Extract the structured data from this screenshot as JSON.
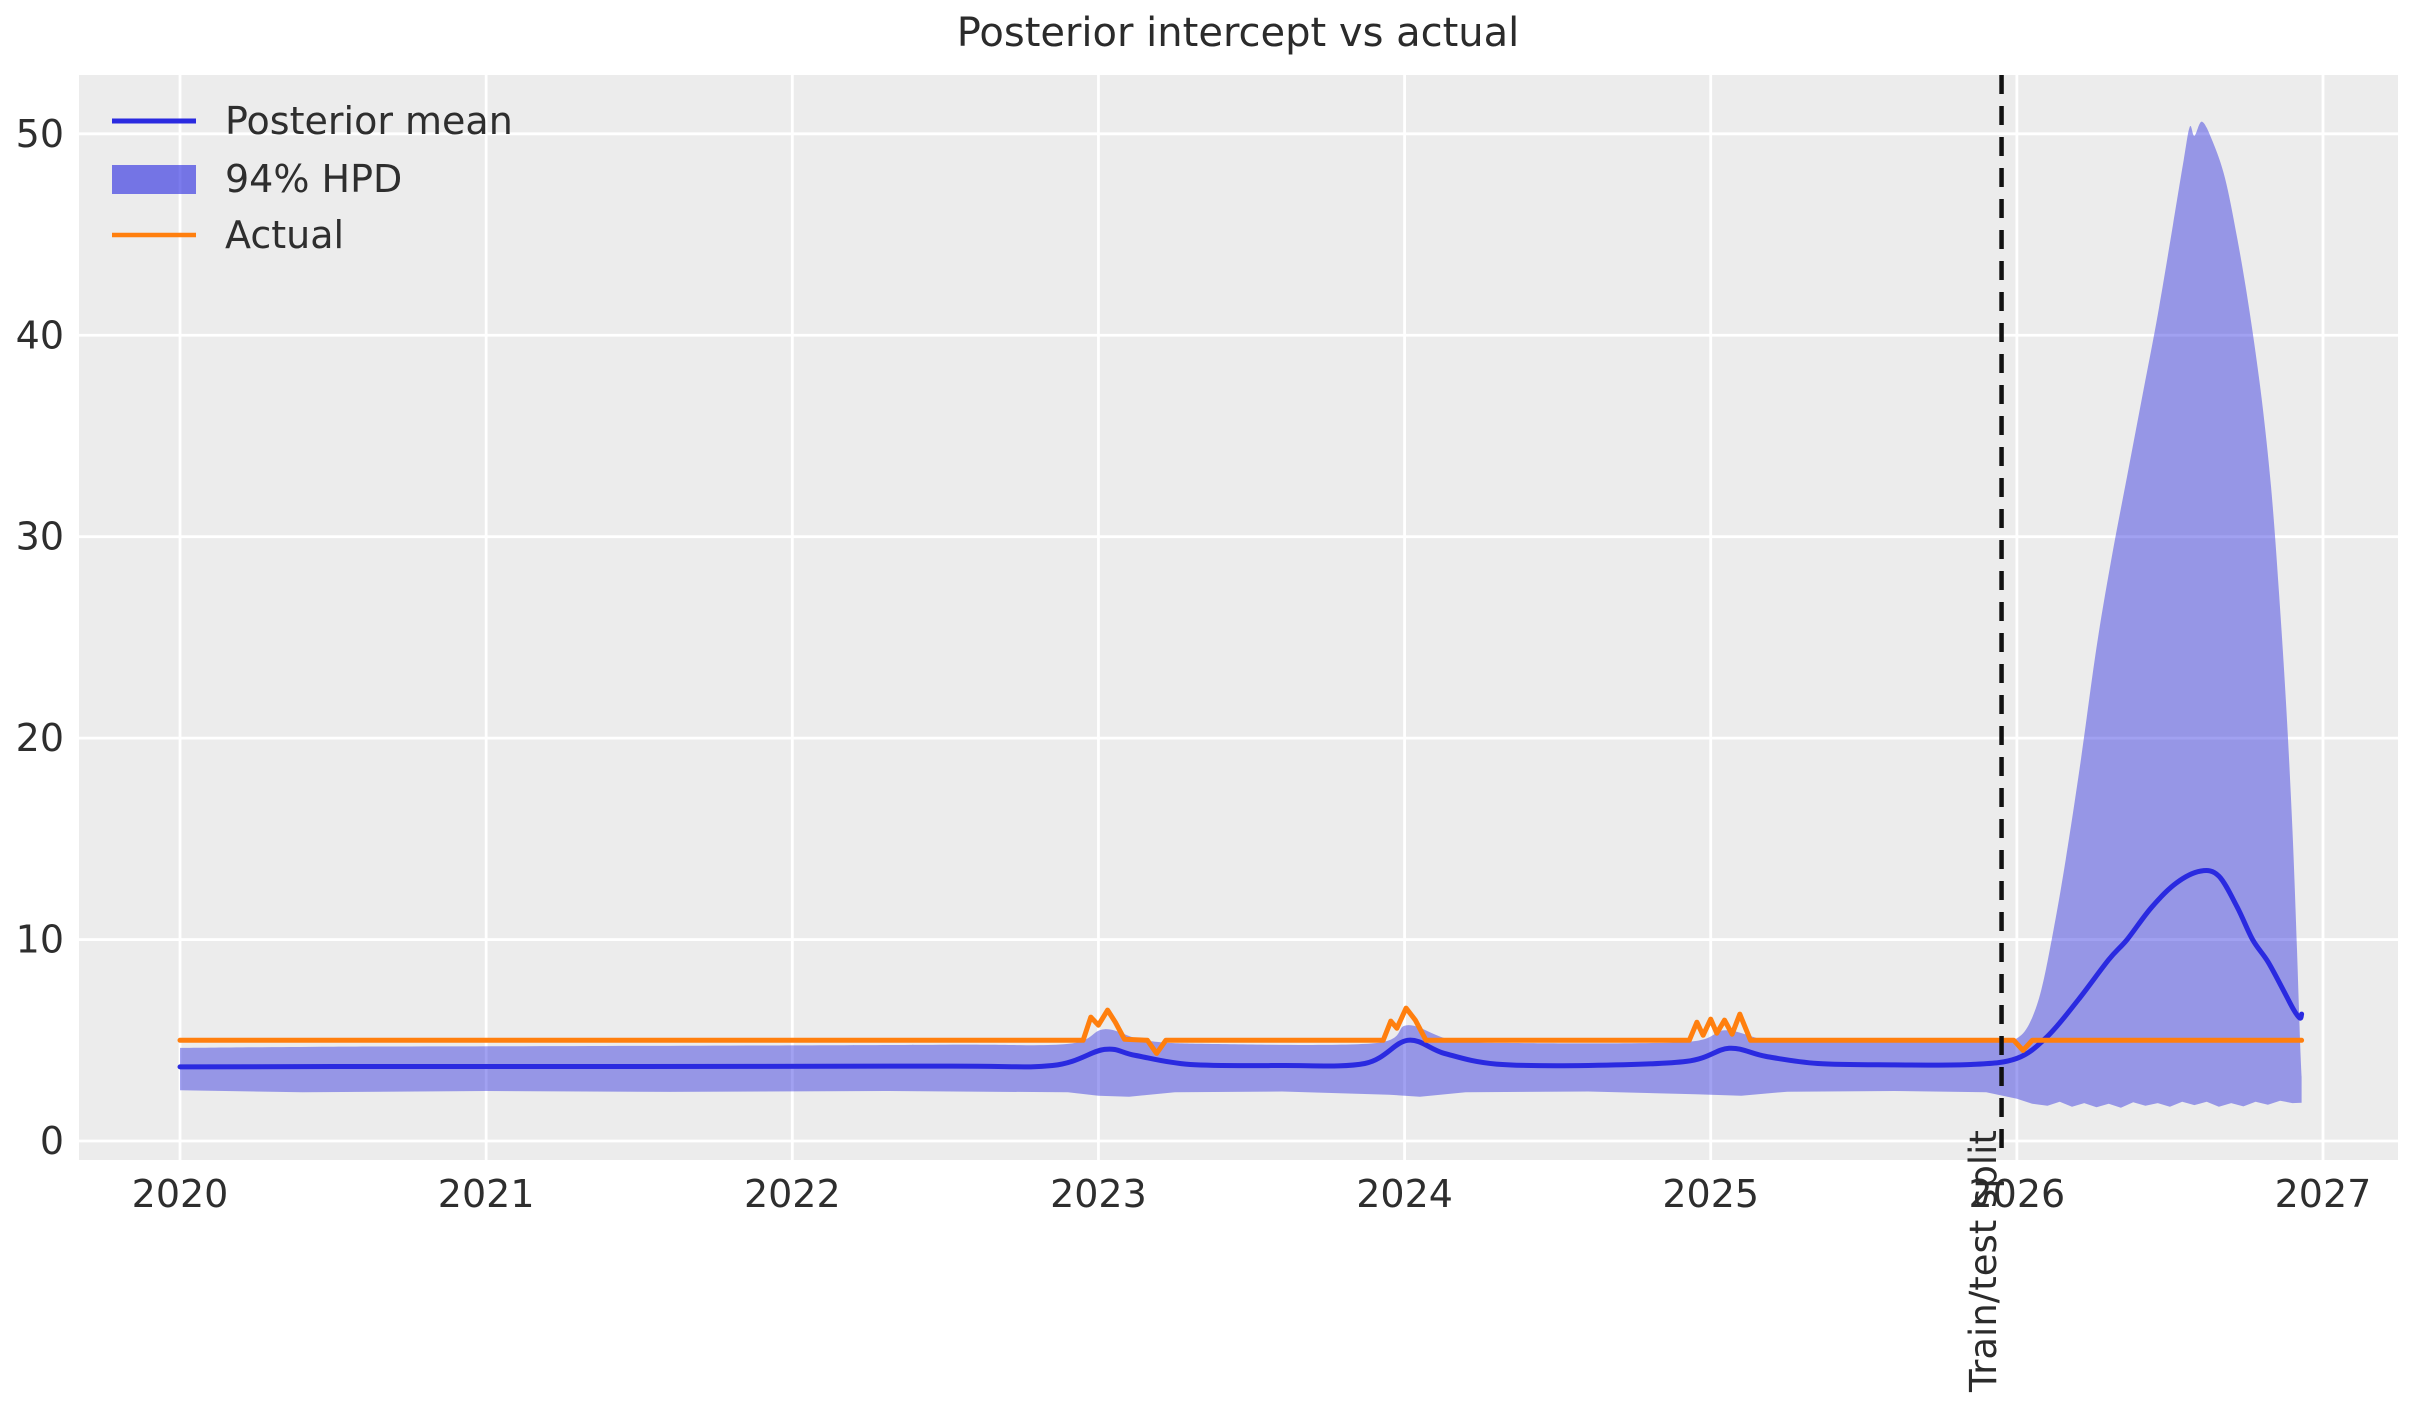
{
  "figure": {
    "background": "#ffffff",
    "plot_background": "#ececec",
    "grid_color": "#ffffff",
    "text_color": "#2e2e2e"
  },
  "chart_data": {
    "type": "line",
    "title": "Posterior intercept vs actual",
    "xlim": [
      2019.67,
      2027.245
    ],
    "ylim": [
      -0.943,
      52.92
    ],
    "grid": true,
    "x_ticks": [
      {
        "value": 2020,
        "label": "2020"
      },
      {
        "value": 2021,
        "label": "2021"
      },
      {
        "value": 2022,
        "label": "2022"
      },
      {
        "value": 2023,
        "label": "2023"
      },
      {
        "value": 2024,
        "label": "2024"
      },
      {
        "value": 2025,
        "label": "2025"
      },
      {
        "value": 2026,
        "label": "2026"
      },
      {
        "value": 2027,
        "label": "2027"
      }
    ],
    "y_ticks": [
      {
        "value": 0,
        "label": "0"
      },
      {
        "value": 10,
        "label": "10"
      },
      {
        "value": 20,
        "label": "20"
      },
      {
        "value": 30,
        "label": "30"
      },
      {
        "value": 40,
        "label": "40"
      },
      {
        "value": 50,
        "label": "50"
      }
    ],
    "legend": {
      "position": "upper-left",
      "entries": [
        {
          "label": "Posterior mean",
          "kind": "line",
          "color": "#2a2ae0"
        },
        {
          "label": "94% HPD",
          "kind": "patch",
          "color": "#8b8eec"
        },
        {
          "label": "Actual",
          "kind": "line",
          "color": "#ff7f0e"
        }
      ]
    },
    "split_line": {
      "x": 2025.95,
      "label": "Train/test split",
      "style": "dashed",
      "color": "#111111"
    },
    "series": [
      {
        "name": "Posterior mean",
        "type": "line",
        "color": "#2a2ae0",
        "width": 5,
        "smooth": true,
        "points": [
          [
            2020.0,
            3.68
          ],
          [
            2020.5,
            3.7
          ],
          [
            2021.5,
            3.7
          ],
          [
            2022.5,
            3.72
          ],
          [
            2022.85,
            3.75
          ],
          [
            2023.02,
            4.55
          ],
          [
            2023.12,
            4.25
          ],
          [
            2023.3,
            3.8
          ],
          [
            2023.6,
            3.75
          ],
          [
            2023.87,
            3.85
          ],
          [
            2024.01,
            5.0
          ],
          [
            2024.13,
            4.35
          ],
          [
            2024.3,
            3.82
          ],
          [
            2024.6,
            3.75
          ],
          [
            2024.92,
            3.95
          ],
          [
            2025.06,
            4.6
          ],
          [
            2025.18,
            4.2
          ],
          [
            2025.35,
            3.85
          ],
          [
            2025.6,
            3.78
          ],
          [
            2025.85,
            3.8
          ],
          [
            2026.0,
            4.1
          ],
          [
            2026.1,
            5.2
          ],
          [
            2026.2,
            7.0
          ],
          [
            2026.3,
            9.0
          ],
          [
            2026.36,
            10.0
          ],
          [
            2026.44,
            11.6
          ],
          [
            2026.52,
            12.8
          ],
          [
            2026.6,
            13.4
          ],
          [
            2026.66,
            13.15
          ],
          [
            2026.72,
            11.6
          ],
          [
            2026.77,
            10.0
          ],
          [
            2026.82,
            8.9
          ],
          [
            2026.87,
            7.5
          ],
          [
            2026.905,
            6.5
          ],
          [
            2026.925,
            6.1
          ],
          [
            2026.93,
            6.3
          ]
        ]
      },
      {
        "name": "Actual",
        "type": "line",
        "color": "#ff7f0e",
        "width": 5,
        "smooth": false,
        "points": [
          [
            2020.0,
            5.0
          ],
          [
            2022.95,
            5.0
          ],
          [
            2022.975,
            6.15
          ],
          [
            2023.0,
            5.75
          ],
          [
            2023.03,
            6.5
          ],
          [
            2023.055,
            5.9
          ],
          [
            2023.085,
            5.05
          ],
          [
            2023.16,
            5.0
          ],
          [
            2023.19,
            4.35
          ],
          [
            2023.22,
            5.0
          ],
          [
            2023.93,
            5.0
          ],
          [
            2023.955,
            5.95
          ],
          [
            2023.975,
            5.6
          ],
          [
            2024.005,
            6.6
          ],
          [
            2024.035,
            6.0
          ],
          [
            2024.07,
            5.0
          ],
          [
            2024.93,
            5.0
          ],
          [
            2024.955,
            5.9
          ],
          [
            2024.975,
            5.25
          ],
          [
            2025.0,
            6.05
          ],
          [
            2025.02,
            5.35
          ],
          [
            2025.045,
            6.0
          ],
          [
            2025.07,
            5.3
          ],
          [
            2025.095,
            6.3
          ],
          [
            2025.13,
            5.0
          ],
          [
            2025.99,
            5.0
          ],
          [
            2026.02,
            4.5
          ],
          [
            2026.05,
            5.0
          ],
          [
            2026.93,
            5.0
          ]
        ]
      },
      {
        "name": "94% HPD",
        "type": "band",
        "color": "#2a2ae0",
        "fill_opacity": 0.44,
        "upper": [
          [
            2020.0,
            4.62
          ],
          [
            2020.5,
            4.68
          ],
          [
            2021.5,
            4.72
          ],
          [
            2022.5,
            4.78
          ],
          [
            2022.9,
            4.82
          ],
          [
            2023.02,
            5.55
          ],
          [
            2023.15,
            5.0
          ],
          [
            2023.35,
            4.82
          ],
          [
            2023.9,
            4.85
          ],
          [
            2024.01,
            5.75
          ],
          [
            2024.16,
            5.0
          ],
          [
            2024.4,
            4.86
          ],
          [
            2024.92,
            4.92
          ],
          [
            2025.05,
            5.5
          ],
          [
            2025.22,
            4.95
          ],
          [
            2025.6,
            4.93
          ],
          [
            2025.95,
            4.95
          ],
          [
            2026.0,
            5.1
          ],
          [
            2026.04,
            5.8
          ],
          [
            2026.08,
            7.5
          ],
          [
            2026.12,
            10.5
          ],
          [
            2026.16,
            14.0
          ],
          [
            2026.21,
            19.0
          ],
          [
            2026.26,
            24.5
          ],
          [
            2026.31,
            29.0
          ],
          [
            2026.36,
            33.0
          ],
          [
            2026.41,
            37.0
          ],
          [
            2026.46,
            41.0
          ],
          [
            2026.51,
            45.5
          ],
          [
            2026.545,
            48.7
          ],
          [
            2026.565,
            50.35
          ],
          [
            2026.58,
            49.9
          ],
          [
            2026.605,
            50.6
          ],
          [
            2026.64,
            49.6
          ],
          [
            2026.68,
            47.8
          ],
          [
            2026.72,
            44.8
          ],
          [
            2026.76,
            41.2
          ],
          [
            2026.8,
            36.8
          ],
          [
            2026.83,
            32.5
          ],
          [
            2026.855,
            27.5
          ],
          [
            2026.88,
            21.5
          ],
          [
            2026.9,
            15.5
          ],
          [
            2026.915,
            9.5
          ],
          [
            2026.925,
            5.0
          ],
          [
            2026.93,
            3.2
          ]
        ],
        "lower": [
          [
            2020.0,
            2.52
          ],
          [
            2020.4,
            2.42
          ],
          [
            2021.0,
            2.48
          ],
          [
            2021.6,
            2.44
          ],
          [
            2022.3,
            2.48
          ],
          [
            2022.9,
            2.42
          ],
          [
            2023.0,
            2.25
          ],
          [
            2023.1,
            2.2
          ],
          [
            2023.25,
            2.42
          ],
          [
            2023.6,
            2.46
          ],
          [
            2023.95,
            2.3
          ],
          [
            2024.05,
            2.2
          ],
          [
            2024.2,
            2.42
          ],
          [
            2024.6,
            2.46
          ],
          [
            2024.95,
            2.32
          ],
          [
            2025.1,
            2.25
          ],
          [
            2025.25,
            2.45
          ],
          [
            2025.6,
            2.48
          ],
          [
            2025.9,
            2.42
          ],
          [
            2026.0,
            2.1
          ],
          [
            2026.05,
            1.85
          ],
          [
            2026.1,
            1.75
          ],
          [
            2026.14,
            1.95
          ],
          [
            2026.18,
            1.7
          ],
          [
            2026.22,
            1.88
          ],
          [
            2026.26,
            1.68
          ],
          [
            2026.3,
            1.85
          ],
          [
            2026.34,
            1.65
          ],
          [
            2026.38,
            1.92
          ],
          [
            2026.42,
            1.75
          ],
          [
            2026.46,
            1.88
          ],
          [
            2026.5,
            1.7
          ],
          [
            2026.54,
            1.95
          ],
          [
            2026.58,
            1.78
          ],
          [
            2026.62,
            1.95
          ],
          [
            2026.66,
            1.7
          ],
          [
            2026.7,
            1.88
          ],
          [
            2026.74,
            1.72
          ],
          [
            2026.78,
            1.95
          ],
          [
            2026.82,
            1.8
          ],
          [
            2026.86,
            2.0
          ],
          [
            2026.9,
            1.88
          ],
          [
            2026.93,
            1.9
          ]
        ]
      }
    ]
  }
}
